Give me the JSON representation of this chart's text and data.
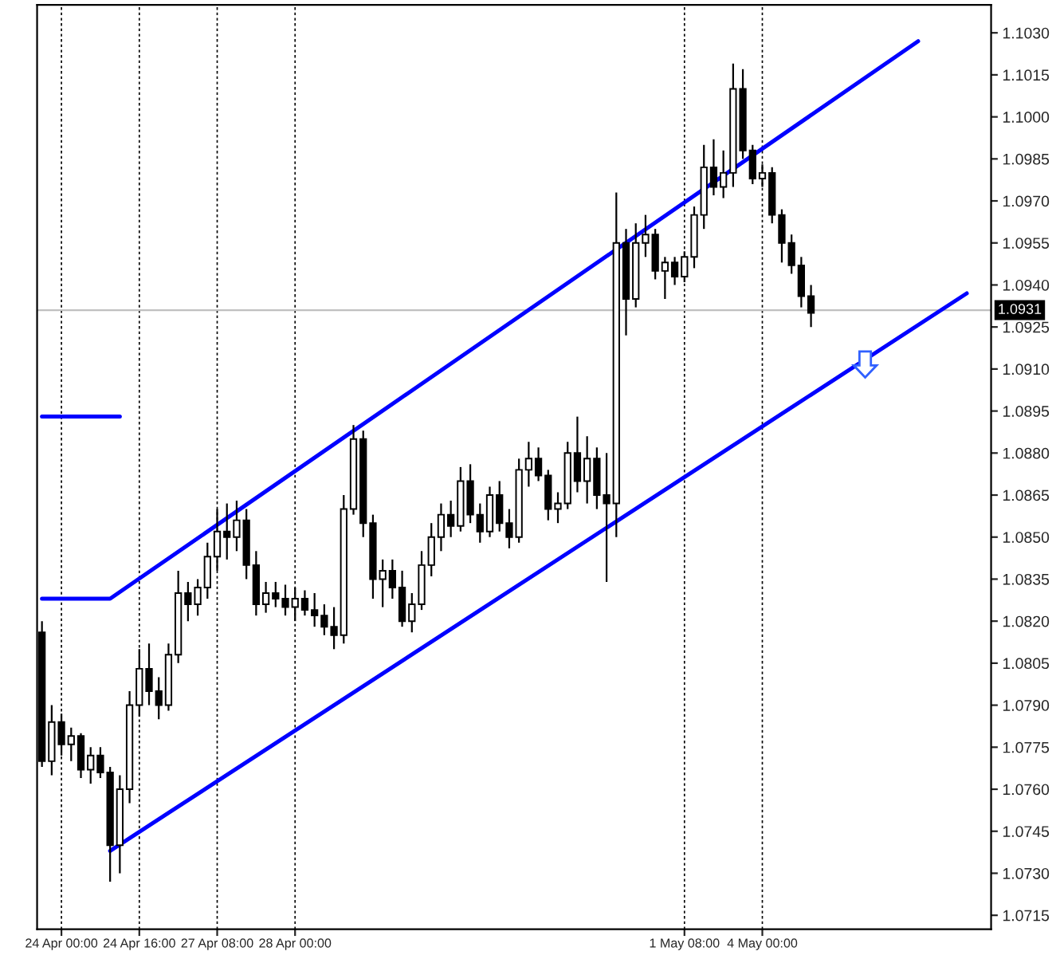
{
  "chart_data": {
    "type": "candlestick",
    "categories": [
      null,
      null,
      "24 Apr 00:00",
      null,
      null,
      null,
      null,
      null,
      null,
      null,
      "24 Apr 16:00",
      null,
      null,
      null,
      null,
      null,
      null,
      null,
      "27 Apr 08:00",
      null,
      null,
      null,
      null,
      null,
      null,
      null,
      "28 Apr 00:00",
      null,
      null,
      null,
      null,
      null,
      null,
      null,
      null,
      null,
      null,
      null,
      null,
      null,
      null,
      null,
      null,
      null,
      null,
      null,
      null,
      null,
      null,
      null,
      null,
      null,
      null,
      null,
      null,
      null,
      null,
      null,
      null,
      null,
      null,
      null,
      null,
      null,
      null,
      null,
      "1 May 08:00",
      null,
      null,
      null,
      null,
      null,
      null,
      null,
      "4 May 00:00",
      null,
      null,
      null,
      null,
      null,
      null,
      null,
      null,
      null,
      null,
      null,
      null,
      null,
      null,
      null,
      null,
      null,
      null,
      null,
      null,
      null,
      null,
      null
    ],
    "ohlc": [
      [
        1.0816,
        1.082,
        1.0768,
        1.077
      ],
      [
        1.077,
        1.079,
        1.0765,
        1.0784
      ],
      [
        1.0784,
        1.0787,
        1.0772,
        1.0776
      ],
      [
        1.0776,
        1.0782,
        1.077,
        1.0779
      ],
      [
        1.0779,
        1.078,
        1.0764,
        1.0767
      ],
      [
        1.0767,
        1.0775,
        1.0762,
        1.0772
      ],
      [
        1.0772,
        1.0775,
        1.0764,
        1.0766
      ],
      [
        1.0766,
        1.0768,
        1.0727,
        1.074
      ],
      [
        1.074,
        1.0765,
        1.073,
        1.076
      ],
      [
        1.076,
        1.0795,
        1.0755,
        1.079
      ],
      [
        1.079,
        1.081,
        1.0786,
        1.0803
      ],
      [
        1.0803,
        1.0812,
        1.079,
        1.0795
      ],
      [
        1.0795,
        1.08,
        1.0785,
        1.079
      ],
      [
        1.079,
        1.0812,
        1.0788,
        1.0808
      ],
      [
        1.0808,
        1.0838,
        1.0805,
        1.083
      ],
      [
        1.083,
        1.0834,
        1.082,
        1.0826
      ],
      [
        1.0826,
        1.0835,
        1.0822,
        1.0832
      ],
      [
        1.0832,
        1.0848,
        1.0828,
        1.0843
      ],
      [
        1.0843,
        1.086,
        1.0838,
        1.0852
      ],
      [
        1.0852,
        1.0862,
        1.0842,
        1.085
      ],
      [
        1.085,
        1.0863,
        1.0845,
        1.0856
      ],
      [
        1.0856,
        1.086,
        1.0835,
        1.084
      ],
      [
        1.084,
        1.0845,
        1.0822,
        1.0826
      ],
      [
        1.0826,
        1.0834,
        1.0823,
        1.083
      ],
      [
        1.083,
        1.0834,
        1.0825,
        1.0828
      ],
      [
        1.0828,
        1.0833,
        1.0822,
        1.0825
      ],
      [
        1.0825,
        1.0832,
        1.082,
        1.0828
      ],
      [
        1.0828,
        1.0831,
        1.0822,
        1.0824
      ],
      [
        1.0824,
        1.083,
        1.0818,
        1.0822
      ],
      [
        1.0822,
        1.0826,
        1.0815,
        1.0818
      ],
      [
        1.0818,
        1.0825,
        1.081,
        1.0815
      ],
      [
        1.0815,
        1.0865,
        1.0812,
        1.086
      ],
      [
        1.086,
        1.089,
        1.0858,
        1.0885
      ],
      [
        1.0885,
        1.0888,
        1.085,
        1.0855
      ],
      [
        1.0855,
        1.0858,
        1.0828,
        1.0835
      ],
      [
        1.0835,
        1.0842,
        1.0825,
        1.0838
      ],
      [
        1.0838,
        1.0842,
        1.0828,
        1.0832
      ],
      [
        1.0832,
        1.0838,
        1.0818,
        1.082
      ],
      [
        1.082,
        1.083,
        1.0816,
        1.0826
      ],
      [
        1.0826,
        1.0845,
        1.0824,
        1.084
      ],
      [
        1.084,
        1.0855,
        1.0836,
        1.085
      ],
      [
        1.085,
        1.0862,
        1.0845,
        1.0858
      ],
      [
        1.0858,
        1.0863,
        1.085,
        1.0854
      ],
      [
        1.0854,
        1.0875,
        1.0852,
        1.087
      ],
      [
        1.087,
        1.0876,
        1.0855,
        1.0858
      ],
      [
        1.0858,
        1.0862,
        1.0848,
        1.0852
      ],
      [
        1.0852,
        1.0868,
        1.085,
        1.0865
      ],
      [
        1.0865,
        1.087,
        1.0852,
        1.0855
      ],
      [
        1.0855,
        1.086,
        1.0846,
        1.085
      ],
      [
        1.085,
        1.0878,
        1.0848,
        1.0874
      ],
      [
        1.0874,
        1.0884,
        1.0868,
        1.0878
      ],
      [
        1.0878,
        1.0882,
        1.087,
        1.0872
      ],
      [
        1.0872,
        1.0874,
        1.0856,
        1.086
      ],
      [
        1.086,
        1.0866,
        1.0855,
        1.0862
      ],
      [
        1.0862,
        1.0884,
        1.086,
        1.088
      ],
      [
        1.088,
        1.0893,
        1.0866,
        1.087
      ],
      [
        1.087,
        1.0886,
        1.0862,
        1.0878
      ],
      [
        1.0878,
        1.0882,
        1.086,
        1.0865
      ],
      [
        1.0865,
        1.088,
        1.0834,
        1.0862
      ],
      [
        1.0862,
        1.0973,
        1.085,
        1.0955
      ],
      [
        1.0955,
        1.096,
        1.0922,
        1.0935
      ],
      [
        1.0935,
        1.0962,
        1.0932,
        1.0955
      ],
      [
        1.0955,
        1.0965,
        1.095,
        1.0958
      ],
      [
        1.0958,
        1.096,
        1.0942,
        1.0945
      ],
      [
        1.0945,
        1.095,
        1.0935,
        1.0948
      ],
      [
        1.0948,
        1.095,
        1.094,
        1.0943
      ],
      [
        1.0943,
        1.0952,
        1.0941,
        1.095
      ],
      [
        1.095,
        1.0968,
        1.0946,
        1.0965
      ],
      [
        1.0965,
        1.099,
        1.096,
        1.0982
      ],
      [
        1.0982,
        1.0992,
        1.0972,
        1.0975
      ],
      [
        1.0975,
        1.0988,
        1.0971,
        1.098
      ],
      [
        1.098,
        1.1019,
        1.0975,
        1.101
      ],
      [
        1.101,
        1.1017,
        1.0985,
        1.0988
      ],
      [
        1.0988,
        1.099,
        1.0976,
        1.0978
      ],
      [
        1.0978,
        1.0983,
        1.0975,
        1.098
      ],
      [
        1.098,
        1.0982,
        1.0962,
        1.0965
      ],
      [
        1.0965,
        1.0967,
        1.0948,
        1.0955
      ],
      [
        1.0955,
        1.0958,
        1.0944,
        1.0947
      ],
      [
        1.0947,
        1.095,
        1.0932,
        1.0936
      ],
      [
        1.0936,
        1.094,
        1.0925,
        1.093
      ],
      null,
      null,
      null,
      null,
      null,
      null,
      null,
      null,
      null,
      null,
      null,
      null,
      null,
      null,
      null,
      null,
      null,
      null
    ],
    "series": [
      {
        "type": "line",
        "color": "#0000ff",
        "values": [
          1.0828,
          null,
          null,
          null,
          null,
          null,
          null,
          1.0828,
          null,
          null,
          null,
          null,
          null,
          null,
          null,
          null,
          null,
          null,
          null,
          null,
          null,
          null,
          null,
          null,
          null,
          null,
          null,
          null,
          null,
          null,
          null,
          null,
          null,
          null,
          null,
          null,
          null,
          null,
          null,
          null,
          null,
          null,
          null,
          null,
          null,
          null,
          null,
          null,
          null,
          null,
          null,
          null,
          null,
          null,
          null,
          null,
          null,
          null,
          null,
          null,
          null,
          null,
          null,
          null,
          null,
          null,
          null,
          null,
          null,
          null,
          null,
          null,
          null,
          null,
          null,
          null,
          null,
          null,
          null,
          null,
          null,
          null,
          null,
          null,
          null,
          null,
          null,
          null,
          null,
          null,
          1.1027,
          null,
          null,
          null,
          null,
          null,
          null,
          null
        ]
      },
      {
        "type": "line",
        "color": "#0000ff",
        "values": [
          null,
          null,
          null,
          null,
          null,
          null,
          null,
          1.0738,
          null,
          null,
          null,
          null,
          null,
          null,
          null,
          null,
          null,
          null,
          null,
          null,
          null,
          null,
          null,
          null,
          null,
          null,
          null,
          null,
          null,
          null,
          null,
          null,
          null,
          null,
          null,
          null,
          null,
          null,
          null,
          null,
          null,
          null,
          null,
          null,
          null,
          null,
          null,
          null,
          null,
          null,
          null,
          null,
          null,
          null,
          null,
          null,
          null,
          null,
          null,
          null,
          null,
          null,
          null,
          null,
          null,
          null,
          null,
          null,
          null,
          null,
          null,
          null,
          null,
          null,
          null,
          null,
          null,
          null,
          null,
          null,
          null,
          null,
          null,
          null,
          null,
          null,
          null,
          null,
          null,
          null,
          null,
          null,
          null,
          null,
          null,
          1.0937,
          null,
          null
        ]
      },
      {
        "type": "line",
        "color": "#0000ff",
        "values": [
          1.0893,
          null,
          null,
          null,
          null,
          null,
          null,
          null,
          1.0893,
          null,
          null,
          null,
          null,
          null,
          null,
          null,
          null,
          null,
          null,
          null,
          null,
          null,
          null,
          null,
          null,
          null,
          null,
          null,
          null,
          null,
          null,
          null,
          null,
          null,
          null,
          null,
          null,
          null,
          null,
          null,
          null,
          null,
          null,
          null,
          null,
          null,
          null,
          null,
          null,
          null,
          null,
          null,
          null,
          null,
          null,
          null,
          null,
          null,
          null,
          null,
          null,
          null,
          null,
          null,
          null,
          null,
          null,
          null,
          null,
          null,
          null,
          null,
          null,
          null,
          null,
          null,
          null,
          null,
          null,
          null,
          null,
          null,
          null,
          null,
          null,
          null,
          null,
          null,
          null,
          null,
          null,
          null,
          null,
          null,
          null,
          null,
          null,
          null
        ]
      }
    ],
    "ylim": [
      1.071,
      1.104
    ],
    "yticks": [
      {
        "value": 1.0715,
        "label": "1.0715"
      },
      {
        "value": 1.073,
        "label": "1.0730"
      },
      {
        "value": 1.0745,
        "label": "1.0745"
      },
      {
        "value": 1.076,
        "label": "1.0760"
      },
      {
        "value": 1.0775,
        "label": "1.0775"
      },
      {
        "value": 1.079,
        "label": "1.0790"
      },
      {
        "value": 1.0805,
        "label": "1.0805"
      },
      {
        "value": 1.082,
        "label": "1.0820"
      },
      {
        "value": 1.0835,
        "label": "1.0835"
      },
      {
        "value": 1.085,
        "label": "1.0850"
      },
      {
        "value": 1.0865,
        "label": "1.0865"
      },
      {
        "value": 1.088,
        "label": "1.0880"
      },
      {
        "value": 1.0895,
        "label": "1.0895"
      },
      {
        "value": 1.091,
        "label": "1.0910"
      },
      {
        "value": 1.0925,
        "label": "1.0925"
      },
      {
        "value": 1.094,
        "label": "1.0940"
      },
      {
        "value": 1.0955,
        "label": "1.0955"
      },
      {
        "value": 1.097,
        "label": "1.0970"
      },
      {
        "value": 1.0985,
        "label": "1.0985"
      },
      {
        "value": 1.1,
        "label": "1.1000"
      },
      {
        "value": 1.1015,
        "label": "1.1015"
      },
      {
        "value": 1.103,
        "label": "1.1030"
      }
    ],
    "ref_lines": [
      {
        "axis": "y",
        "value": 1.0931,
        "label": "1.0931",
        "color": "#c0c0c0"
      }
    ],
    "grid": "x",
    "legend": false
  }
}
